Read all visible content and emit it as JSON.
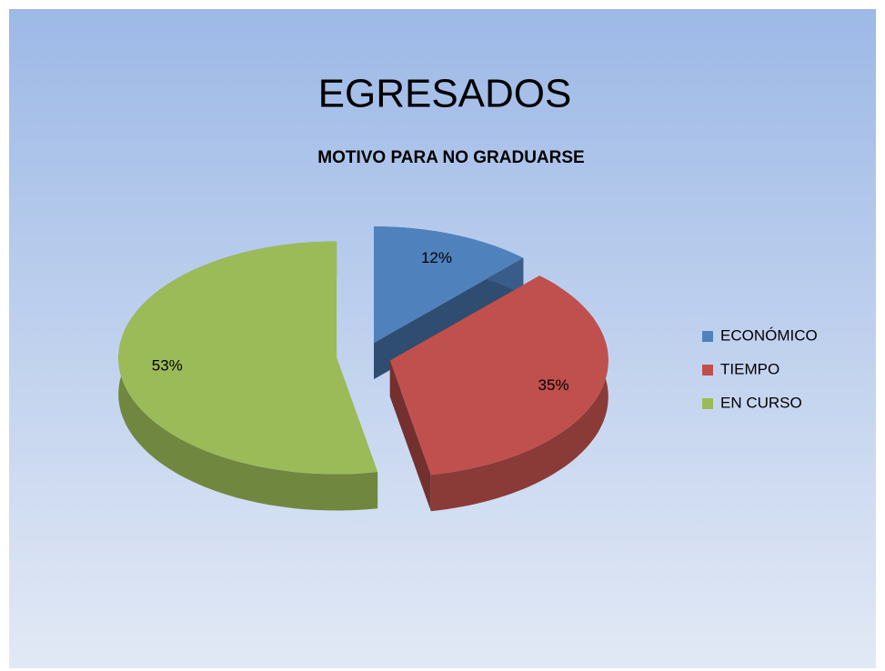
{
  "chart_data": {
    "type": "pie",
    "title": "EGRESADOS",
    "subtitle": "MOTIVO PARA NO GRADUARSE",
    "categories": [
      "ECONÓMICO",
      "TIEMPO",
      "EN CURSO"
    ],
    "values": [
      12,
      35,
      53
    ],
    "value_labels": [
      "12%",
      "35%",
      "53%"
    ],
    "colors": [
      "#4f81bd",
      "#c0504d",
      "#9bbb59"
    ],
    "legend": "right"
  }
}
